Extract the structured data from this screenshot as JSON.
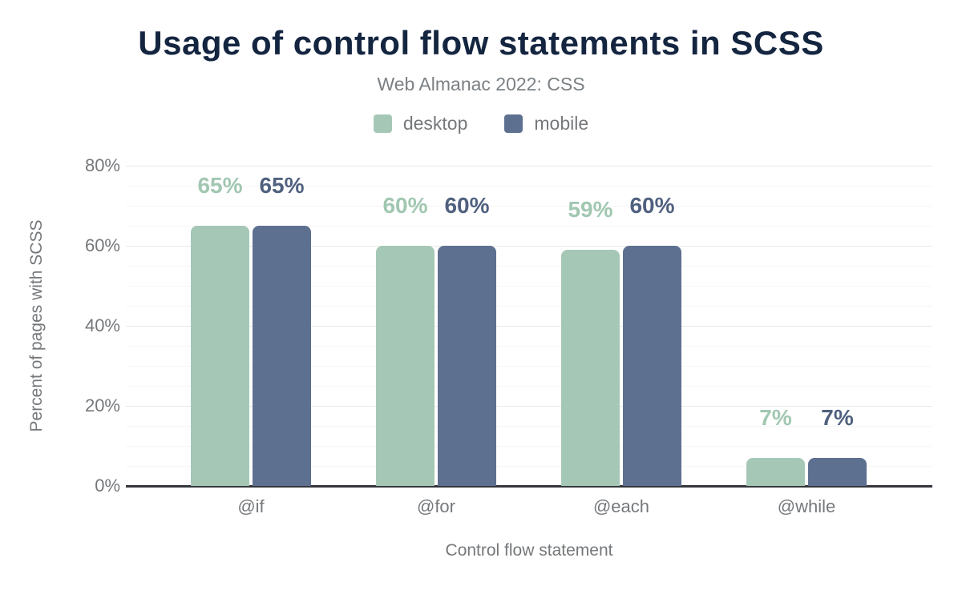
{
  "header": {
    "title": "Usage of control flow statements in SCSS",
    "subtitle": "Web Almanac 2022: CSS"
  },
  "colors": {
    "title": "#142540",
    "subtitle": "#7b8084",
    "muted_text": "#75787b",
    "axis_line": "#35373c",
    "grid_major": "#e9e9e9",
    "grid_minor": "#f6f6f6",
    "desktop": "#a5c8b6",
    "mobile": "#5e7090",
    "desktop_label": "#a1c7b1",
    "mobile_label": "#50617f"
  },
  "chart_data": {
    "type": "bar",
    "title": "Usage of control flow statements in SCSS",
    "subtitle": "Web Almanac 2022: CSS",
    "categories": [
      "@if",
      "@for",
      "@each",
      "@while"
    ],
    "series": [
      {
        "name": "desktop",
        "color": "#a5c8b6",
        "label_color": "#a1c7b1",
        "values": [
          65,
          60,
          59,
          7
        ],
        "labels": [
          "65%",
          "60%",
          "59%",
          "7%"
        ]
      },
      {
        "name": "mobile",
        "color": "#5e7090",
        "label_color": "#50617f",
        "values": [
          65,
          60,
          60,
          7
        ],
        "labels": [
          "65%",
          "60%",
          "60%",
          "7%"
        ]
      }
    ],
    "xlabel": "Control flow statement",
    "ylabel": "Percent of pages with SCSS",
    "ylim": [
      0,
      80
    ],
    "yticks": [
      {
        "value": 0,
        "label": "0%"
      },
      {
        "value": 20,
        "label": "20%"
      },
      {
        "value": 40,
        "label": "40%"
      },
      {
        "value": 60,
        "label": "60%"
      },
      {
        "value": 80,
        "label": "80%"
      }
    ],
    "minor_grid_step": 5,
    "grid": "horizontal, major every 20% with minor every 5%",
    "legend_position": "top-center",
    "data_labels": "above bars"
  }
}
